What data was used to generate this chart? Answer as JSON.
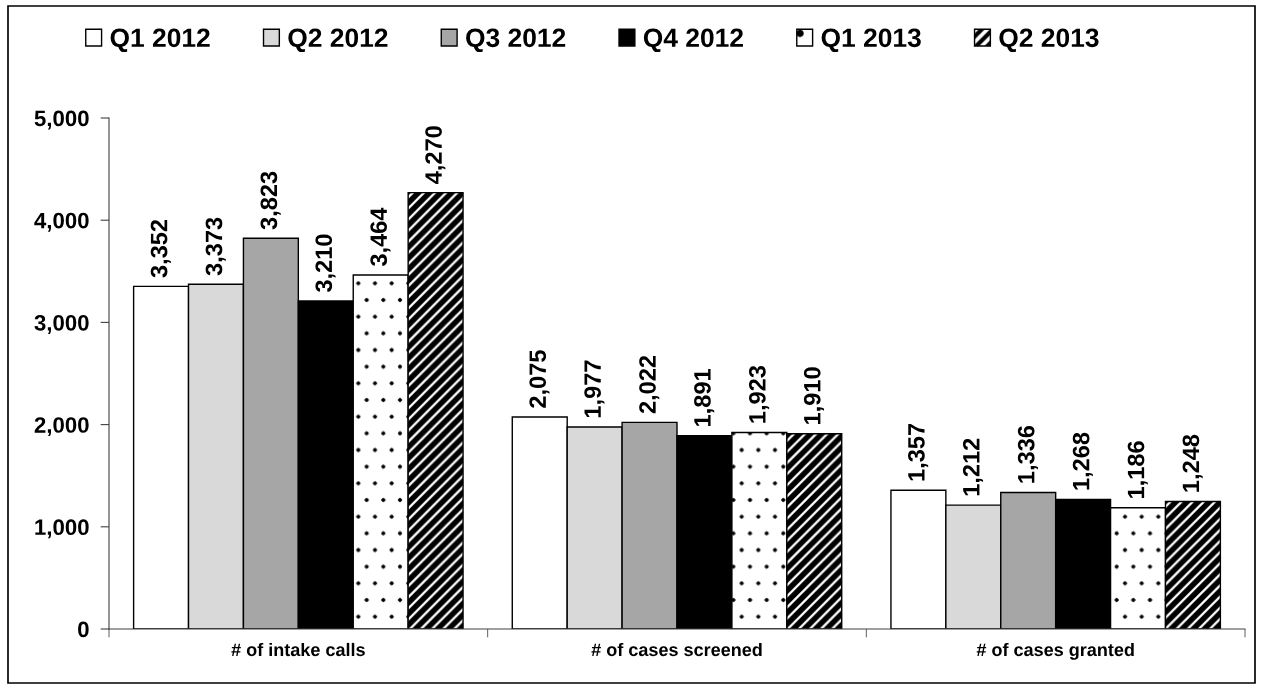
{
  "chart_data": {
    "type": "bar",
    "categories": [
      "# of intake calls",
      "# of cases screened",
      "# of cases granted"
    ],
    "series": [
      {
        "name": "Q1 2012",
        "color": "#ffffff",
        "values": [
          3352,
          2075,
          1357
        ],
        "value_labels": [
          "3,352",
          "2,075",
          "1,357"
        ]
      },
      {
        "name": "Q2 2012",
        "color": "#d9d9d9",
        "values": [
          3373,
          1977,
          1212
        ],
        "value_labels": [
          "3,373",
          "1,977",
          "1,212"
        ]
      },
      {
        "name": "Q3 2012",
        "color": "#a6a6a6",
        "values": [
          3823,
          2022,
          1336
        ],
        "value_labels": [
          "3,823",
          "2,022",
          "1,336"
        ]
      },
      {
        "name": "Q4 2012",
        "color": "#000000",
        "values": [
          3210,
          1891,
          1268
        ],
        "value_labels": [
          "3,210",
          "1,891",
          "1,268"
        ]
      },
      {
        "name": "Q1 2013",
        "color": "#ffffff",
        "values": [
          3464,
          1923,
          1186
        ],
        "value_labels": [
          "3,464",
          "1,923",
          "1,186"
        ]
      },
      {
        "name": "Q2 2013",
        "color": "#ffffff",
        "values": [
          4270,
          1910,
          1248
        ],
        "value_labels": [
          "4,270",
          "1,910",
          "1,248"
        ]
      }
    ],
    "ylim": [
      0,
      5000
    ],
    "yticks": [
      0,
      {
        "value": 1000,
        "label": "1,000"
      },
      {
        "value": 2000,
        "label": "2,000"
      },
      {
        "value": 3000,
        "label": "3,000"
      },
      {
        "value": 4000,
        "label": "4,000"
      },
      {
        "value": 5000,
        "label": "5,000"
      }
    ],
    "legend": "top"
  }
}
